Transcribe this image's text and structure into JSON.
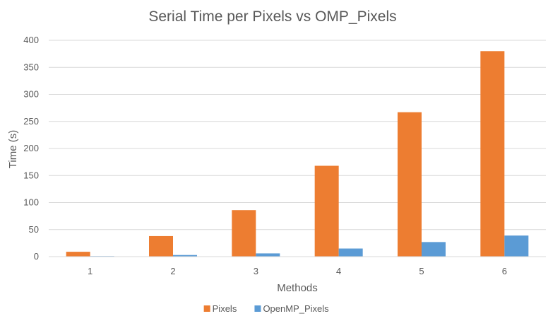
{
  "chart_data": {
    "type": "bar",
    "title": "Serial Time per Pixels vs OMP_Pixels",
    "xlabel": "Methods",
    "ylabel": "Time (s)",
    "categories": [
      "1",
      "2",
      "3",
      "4",
      "5",
      "6"
    ],
    "series": [
      {
        "name": "Pixels",
        "color": "#ED7D31",
        "values": [
          9,
          38,
          86,
          168,
          267,
          380
        ]
      },
      {
        "name": "OpenMP_Pixels",
        "color": "#5B9BD5",
        "values": [
          1,
          3,
          6,
          15,
          27,
          39
        ]
      }
    ],
    "ylim": [
      0,
      400
    ],
    "yticks": [
      0,
      50,
      100,
      150,
      200,
      250,
      300,
      350,
      400
    ],
    "grid": true,
    "legend_position": "bottom"
  }
}
